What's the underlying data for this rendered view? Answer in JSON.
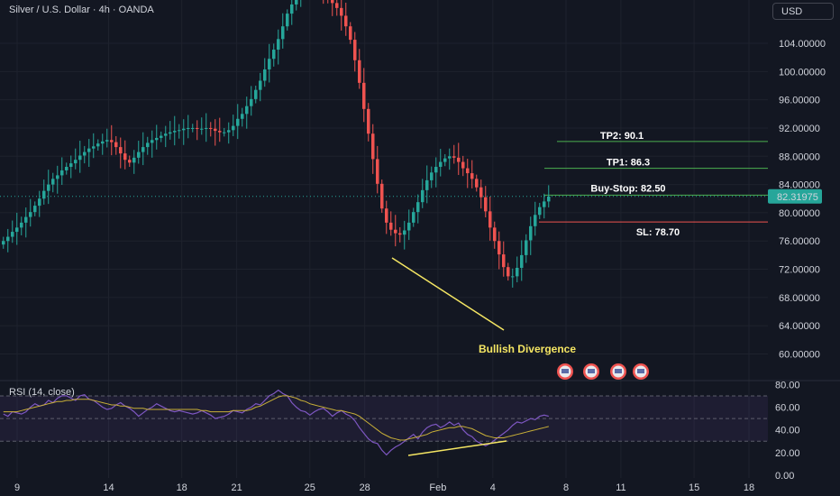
{
  "header": {
    "title": "Silver / U.S. Dollar · 4h · OANDA",
    "currency_button": "USD"
  },
  "colors": {
    "background": "#131722",
    "bull": "#26a69a",
    "bear": "#ef5350",
    "trendline": "#f5e663",
    "rsi_line": "#7e57c2",
    "rsi_ma": "#c9b037",
    "tp_line": "#4caf50",
    "sl_line": "#ef5350",
    "axis_text": "#d1d4dc"
  },
  "chart_data": [
    {
      "type": "candlestick",
      "title": "Silver / U.S. Dollar · 4h · OANDA",
      "ylim": [
        56,
        108
      ],
      "yticks": [
        "104.00000",
        "100.00000",
        "96.00000",
        "92.00000",
        "88.00000",
        "84.00000",
        "80.00000",
        "76.00000",
        "72.00000",
        "68.00000",
        "64.00000",
        "60.00000"
      ],
      "ytick_values": [
        104,
        100,
        96,
        92,
        88,
        84,
        80,
        76,
        72,
        68,
        64,
        60
      ],
      "x_ticks": [
        {
          "label": "9",
          "day": 9
        },
        {
          "label": "14",
          "day": 14
        },
        {
          "label": "18",
          "day": 18
        },
        {
          "label": "21",
          "day": 21
        },
        {
          "label": "25",
          "day": 25
        },
        {
          "label": "28",
          "day": 28
        },
        {
          "label": "Feb",
          "day": 32
        },
        {
          "label": "4",
          "day": 35
        },
        {
          "label": "8",
          "day": 39
        },
        {
          "label": "11",
          "day": 42
        },
        {
          "label": "15",
          "day": 46
        },
        {
          "label": "18",
          "day": 49
        }
      ],
      "last_price": "82.31975",
      "last_price_value": 82.32,
      "levels": [
        {
          "label": "TP2: 90.1",
          "value": 90.1
        },
        {
          "label": "TP1: 86.3",
          "value": 86.3
        },
        {
          "label": "Buy-Stop: 82.50",
          "value": 82.5
        },
        {
          "label": "SL: 78.70",
          "value": 78.7
        }
      ],
      "annotation": "Bullish Divergence",
      "close_series": [
        76.0,
        76.6,
        77.3,
        77.9,
        78.6,
        79.4,
        80.1,
        81.0,
        82.0,
        83.1,
        84.0,
        84.8,
        85.3,
        86.0,
        86.5,
        87.0,
        87.5,
        88.1,
        88.6,
        89.1,
        89.4,
        89.8,
        90.1,
        90.3,
        90.0,
        89.3,
        88.4,
        87.5,
        87.1,
        87.8,
        88.6,
        89.3,
        89.9,
        90.3,
        90.6,
        90.9,
        91.2,
        91.4,
        91.6,
        91.7,
        91.9,
        92.0,
        92.0,
        91.9,
        91.9,
        92.0,
        91.9,
        91.6,
        91.4,
        91.4,
        91.7,
        92.3,
        93.3,
        94.0,
        95.1,
        96.1,
        97.4,
        98.7,
        100.3,
        101.8,
        103.1,
        104.6,
        106.4,
        108.2,
        109.5,
        111.0,
        112.0,
        112.6,
        113.0,
        112.5,
        111.8,
        111.2,
        110.5,
        109.7,
        109.0,
        107.9,
        106.4,
        104.5,
        101.6,
        98.4,
        94.7,
        91.2,
        87.6,
        84.1,
        80.6,
        78.6,
        77.6,
        77.1,
        76.9,
        77.5,
        78.6,
        80.1,
        81.5,
        83.2,
        84.6,
        85.7,
        86.5,
        87.2,
        87.7,
        88.0,
        87.8,
        87.2,
        86.3,
        85.6,
        84.8,
        83.6,
        82.2,
        80.2,
        77.9,
        76.0,
        74.1,
        72.3,
        71.0,
        71.0,
        72.2,
        74.0,
        76.1,
        78.1,
        79.7,
        80.8,
        81.6,
        82.3
      ]
    },
    {
      "type": "line",
      "title": "RSI (14, close)",
      "ylim": [
        0,
        85
      ],
      "yticks": [
        "80.00",
        "60.00",
        "40.00",
        "20.00",
        "0.00"
      ],
      "ytick_values": [
        80,
        60,
        40,
        20,
        0
      ],
      "bands": [
        70,
        50,
        30
      ],
      "series": [
        {
          "name": "RSI (14, close)",
          "values": [
            54,
            52,
            56,
            55,
            54,
            56,
            60,
            63,
            61,
            62,
            66,
            64,
            68,
            70,
            70,
            68,
            66,
            70,
            71,
            67,
            66,
            63,
            60,
            58,
            59,
            62,
            64,
            61,
            59,
            56,
            52,
            55,
            58,
            60,
            63,
            61,
            59,
            57,
            56,
            57,
            56,
            55,
            54,
            55,
            57,
            55,
            53,
            50,
            51,
            52,
            54,
            57,
            56,
            55,
            58,
            60,
            63,
            62,
            66,
            70,
            72,
            75,
            72,
            70,
            64,
            60,
            57,
            56,
            53,
            56,
            58,
            59,
            56,
            52,
            55,
            57,
            54,
            52,
            48,
            42,
            37,
            32,
            29,
            28,
            22,
            18,
            22,
            25,
            27,
            30,
            33,
            36,
            32,
            38,
            42,
            44,
            45,
            42,
            44,
            47,
            44,
            46,
            40,
            36,
            34,
            30,
            28,
            26,
            28,
            31,
            34,
            37,
            40,
            44,
            47,
            46,
            48,
            50,
            49,
            52,
            53,
            52
          ]
        },
        {
          "name": "RSI MA",
          "values": [
            56,
            56,
            56,
            56,
            57,
            58,
            59,
            60,
            61,
            62,
            63,
            64,
            65,
            65,
            66,
            66,
            67,
            67,
            67,
            67,
            66,
            65,
            64,
            63,
            62,
            62,
            61,
            61,
            60,
            59,
            59,
            59,
            58,
            58,
            58,
            58,
            58,
            58,
            58,
            58,
            58,
            58,
            58,
            58,
            57,
            57,
            56,
            56,
            56,
            56,
            56,
            57,
            57,
            57,
            57,
            58,
            60,
            61,
            63,
            65,
            67,
            69,
            70,
            70,
            69,
            68,
            66,
            65,
            63,
            62,
            61,
            60,
            59,
            58,
            57,
            57,
            56,
            55,
            54,
            52,
            49,
            46,
            43,
            40,
            37,
            35,
            33,
            32,
            31,
            31,
            32,
            33,
            34,
            35,
            36,
            38,
            39,
            40,
            41,
            42,
            42,
            43,
            43,
            42,
            41,
            39,
            37,
            35,
            34,
            33,
            33,
            33,
            34,
            35,
            36,
            37,
            38,
            39,
            40,
            41,
            42,
            43
          ]
        }
      ]
    }
  ]
}
